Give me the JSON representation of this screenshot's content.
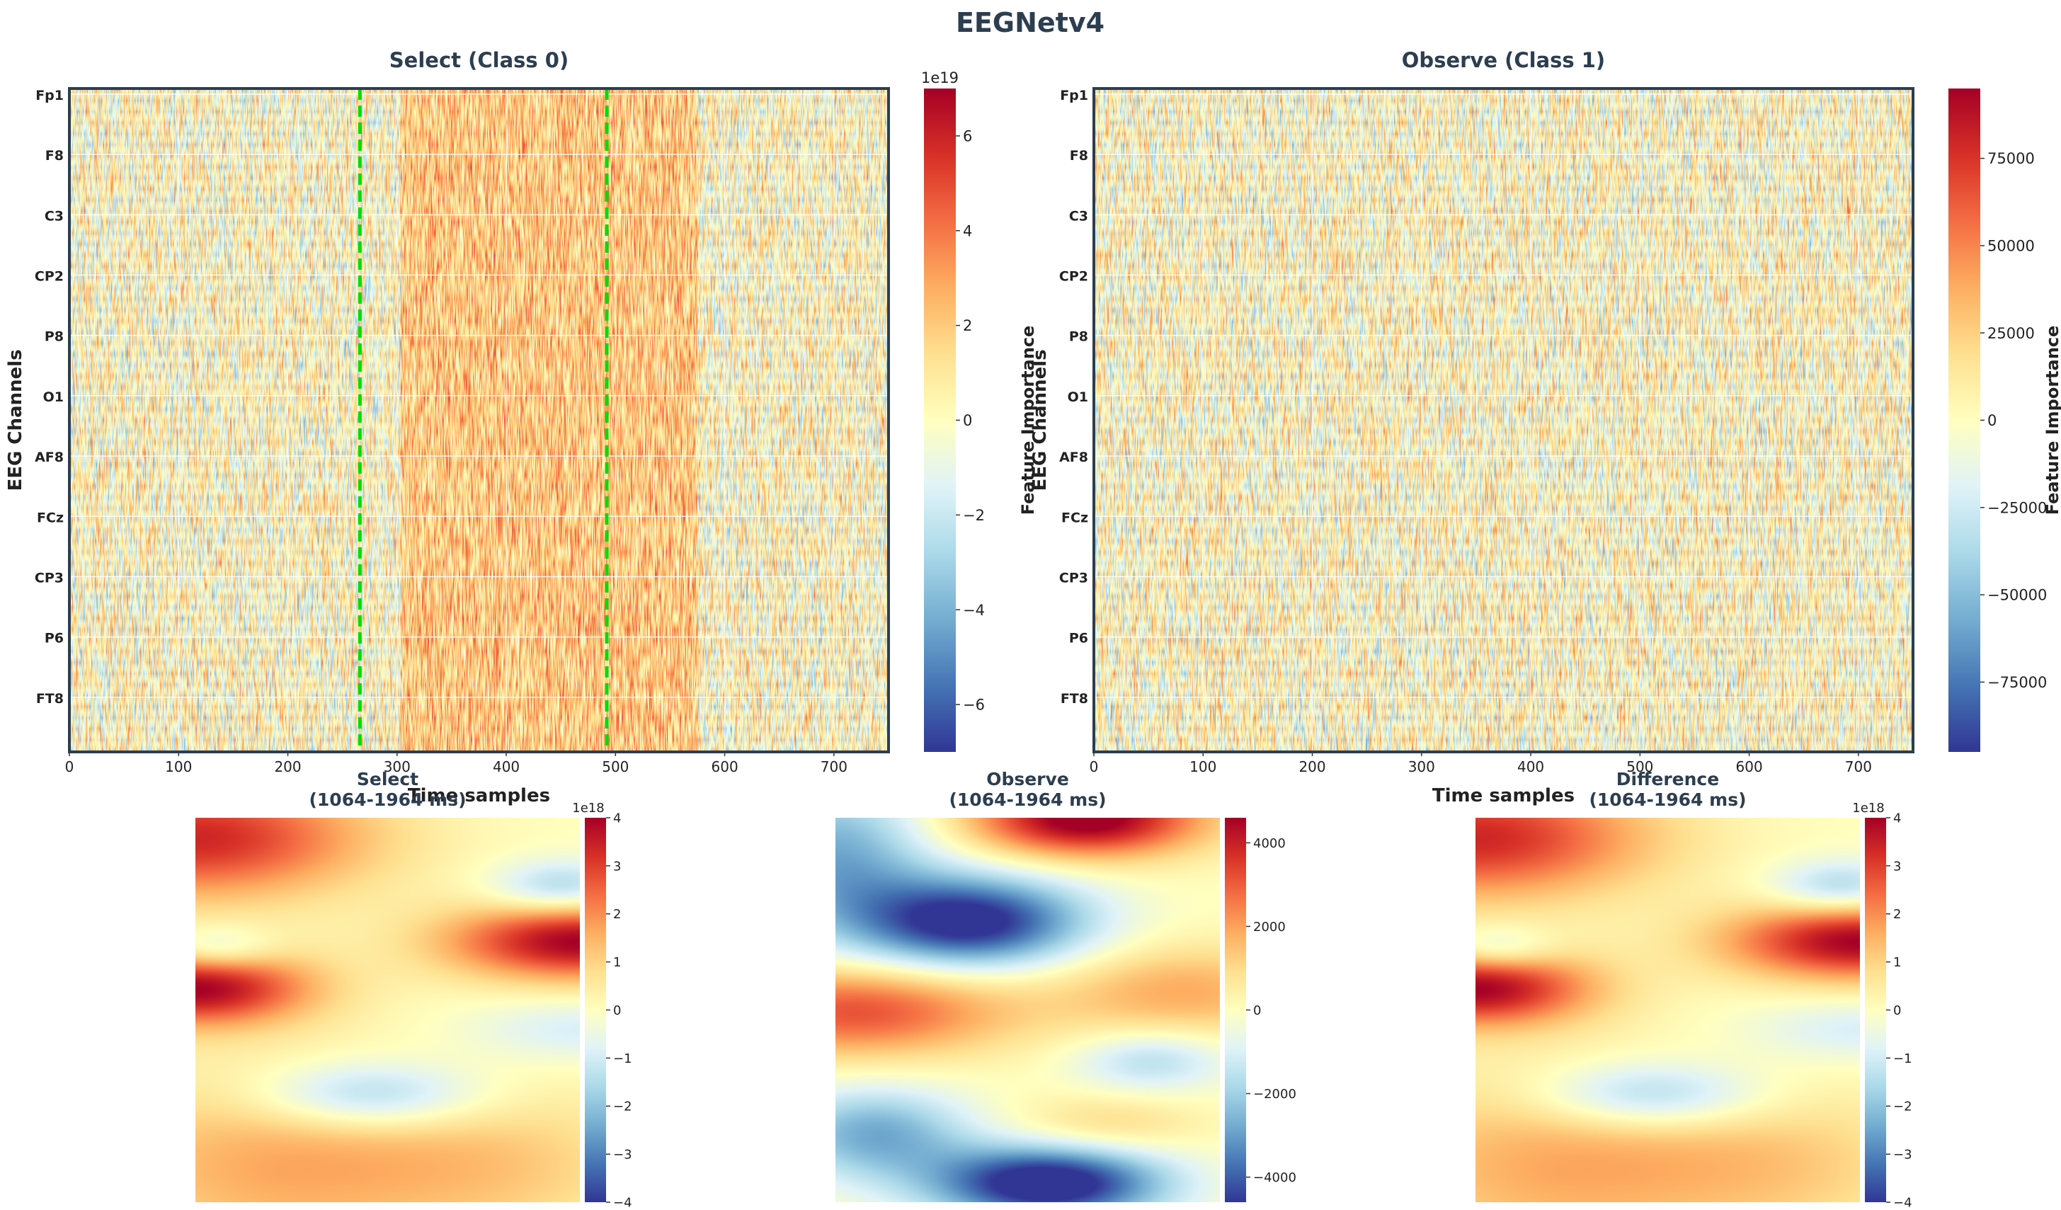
{
  "figure_title": "EEGNetv4",
  "colormap": [
    "#313695",
    "#4575b4",
    "#74add1",
    "#abd9e9",
    "#e0f3f8",
    "#ffffbf",
    "#fee090",
    "#fdae61",
    "#f46d43",
    "#d73027",
    "#a50026"
  ],
  "marker_color": "#00dd00",
  "chart_data": [
    {
      "type": "heatmap",
      "title": "Select (Class 0)",
      "xlabel": "Time samples",
      "ylabel": "EEG Channels",
      "xlim": [
        0,
        750
      ],
      "xticks": [
        "0",
        "100",
        "200",
        "300",
        "400",
        "500",
        "600",
        "700"
      ],
      "channels": [
        "Fp1",
        "F8",
        "C3",
        "CP2",
        "P8",
        "O1",
        "AF8",
        "FCz",
        "CP3",
        "P6",
        "FT8"
      ],
      "marker_lines_x": [
        266,
        492
      ],
      "colorbar": {
        "label": "Feature Importance",
        "offset_text": "1e19",
        "range": [
          -7,
          7
        ],
        "ticks": [
          "−6",
          "−4",
          "−2",
          "0",
          "2",
          "4",
          "6"
        ]
      }
    },
    {
      "type": "heatmap",
      "title": "Observe (Class 1)",
      "xlabel": "Time samples",
      "ylabel": "EEG Channels",
      "xlim": [
        0,
        750
      ],
      "xticks": [
        "0",
        "100",
        "200",
        "300",
        "400",
        "500",
        "600",
        "700"
      ],
      "channels": [
        "Fp1",
        "F8",
        "C3",
        "CP2",
        "P8",
        "O1",
        "AF8",
        "FCz",
        "CP3",
        "P6",
        "FT8"
      ],
      "colorbar": {
        "label": "Feature Importance",
        "offset_text": "",
        "range": [
          -95000,
          95000
        ],
        "ticks": [
          "−75000",
          "−50000",
          "−25000",
          "0",
          "25000",
          "50000",
          "75000"
        ]
      }
    },
    {
      "type": "heatmap",
      "title": "Select\n(1064-1964 ms)",
      "colorbar": {
        "offset_text": "1e18",
        "range": [
          -4,
          4
        ],
        "ticks": [
          "−4",
          "−3",
          "−2",
          "−1",
          "0",
          "1",
          "2",
          "3",
          "4"
        ]
      }
    },
    {
      "type": "heatmap",
      "title": "Observe\n(1064-1964 ms)",
      "colorbar": {
        "offset_text": "",
        "range": [
          -4600,
          4600
        ],
        "ticks": [
          "−4000",
          "−2000",
          "0",
          "2000",
          "4000"
        ]
      }
    },
    {
      "type": "heatmap",
      "title": "Difference\n(1064-1964 ms)",
      "colorbar": {
        "offset_text": "1e18",
        "range": [
          -4,
          4
        ],
        "ticks": [
          "−4",
          "−3",
          "−2",
          "−1",
          "0",
          "1",
          "2",
          "3",
          "4"
        ]
      }
    }
  ]
}
